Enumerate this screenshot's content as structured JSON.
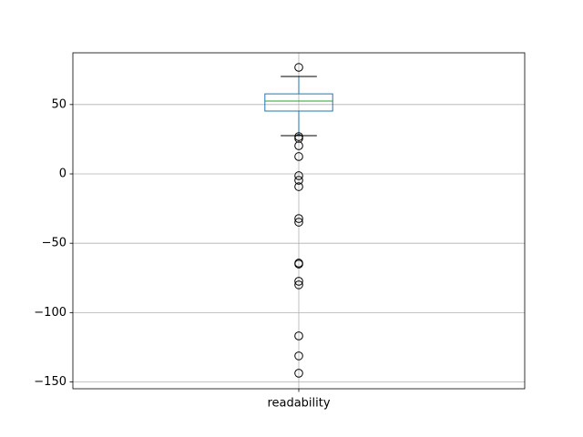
{
  "chart_data": {
    "type": "box",
    "categories": [
      "readability"
    ],
    "boxes": [
      {
        "whislo": 27.6,
        "q1": 45.3,
        "med": 52.5,
        "q3": 57.7,
        "whishi": 70.2,
        "fliers": [
          76.8,
          26.9,
          25.6,
          20.3,
          12.5,
          -1.3,
          -4.6,
          -9.2,
          -32.2,
          -34.8,
          -64.3,
          -65,
          -77.4,
          -80,
          -116.8,
          -131.2,
          -143.7
        ]
      }
    ],
    "box_color": "#1f77b4",
    "median_color": "#2ca02c",
    "cap_color": "#000000",
    "flier_color": "#000000",
    "ylim": [
      -154.9,
      87.3
    ],
    "yticks": [
      {
        "value": -150,
        "label": "−150"
      },
      {
        "value": -100,
        "label": "−100"
      },
      {
        "value": -50,
        "label": "−50"
      },
      0,
      50
    ],
    "grid": true
  }
}
